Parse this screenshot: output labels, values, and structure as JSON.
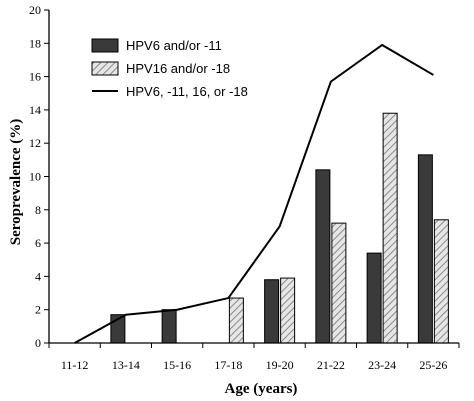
{
  "chart_data": {
    "type": "bar",
    "xlabel": "Age (years)",
    "ylabel": "Seroprevalence (%)",
    "ylim": [
      0,
      20
    ],
    "yticks": [
      0,
      2,
      4,
      6,
      8,
      10,
      12,
      14,
      16,
      18,
      20
    ],
    "categories": [
      "11-12",
      "13-14",
      "15-16",
      "17-18",
      "19-20",
      "21-22",
      "23-24",
      "25-26"
    ],
    "grid": false,
    "legend_position": "top-left",
    "series": [
      {
        "name": "HPV6 and/or -11",
        "kind": "bar",
        "style": "solid-dark",
        "color": "#3a3a3a",
        "values": [
          0,
          1.7,
          2.0,
          0,
          3.8,
          10.4,
          5.4,
          11.3
        ]
      },
      {
        "name": "HPV16 and/or -18",
        "kind": "bar",
        "style": "hatched",
        "color": "#bdbdbd",
        "values": [
          0,
          0,
          0,
          2.7,
          3.9,
          7.2,
          13.8,
          7.4
        ]
      },
      {
        "name": "HPV6, -11, 16, or -18",
        "kind": "line",
        "color": "#000000",
        "values": [
          0,
          1.7,
          2.0,
          2.7,
          7.0,
          15.7,
          17.9,
          16.1
        ]
      }
    ]
  }
}
